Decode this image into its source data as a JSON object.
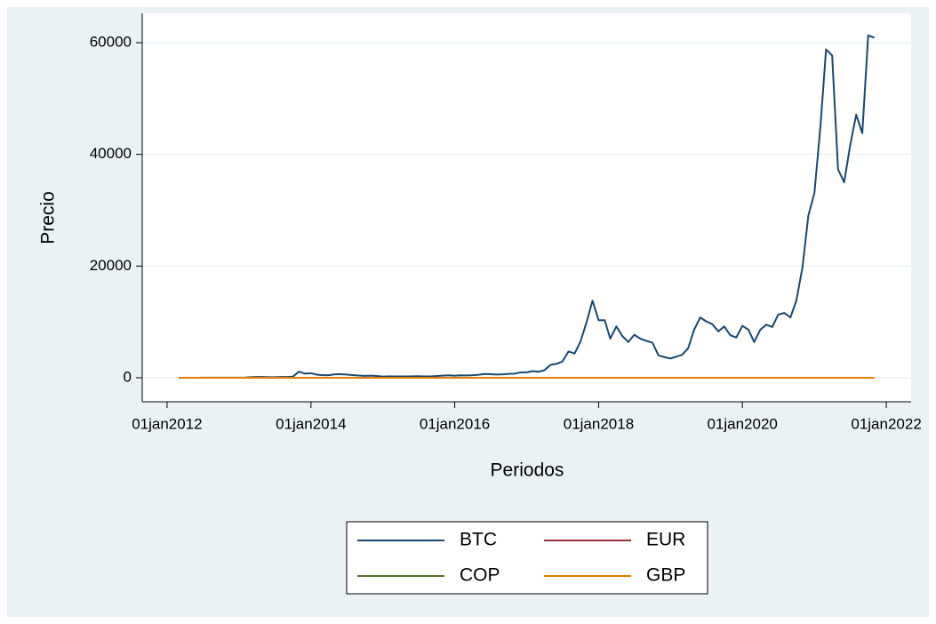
{
  "chart_data": {
    "type": "line",
    "xlabel": "Periodos",
    "ylabel": "Precio",
    "x": [
      "2012-03-01",
      "2012-04-01",
      "2012-05-01",
      "2012-06-01",
      "2012-07-01",
      "2012-08-01",
      "2012-09-01",
      "2012-10-01",
      "2012-11-01",
      "2012-12-01",
      "2013-01-01",
      "2013-02-01",
      "2013-03-01",
      "2013-04-01",
      "2013-05-01",
      "2013-06-01",
      "2013-07-01",
      "2013-08-01",
      "2013-09-01",
      "2013-10-01",
      "2013-11-01",
      "2013-12-01",
      "2014-01-01",
      "2014-02-01",
      "2014-03-01",
      "2014-04-01",
      "2014-05-01",
      "2014-06-01",
      "2014-07-01",
      "2014-08-01",
      "2014-09-01",
      "2014-10-01",
      "2014-11-01",
      "2014-12-01",
      "2015-01-01",
      "2015-02-01",
      "2015-03-01",
      "2015-04-01",
      "2015-05-01",
      "2015-06-01",
      "2015-07-01",
      "2015-08-01",
      "2015-09-01",
      "2015-10-01",
      "2015-11-01",
      "2015-12-01",
      "2016-01-01",
      "2016-02-01",
      "2016-03-01",
      "2016-04-01",
      "2016-05-01",
      "2016-06-01",
      "2016-07-01",
      "2016-08-01",
      "2016-09-01",
      "2016-10-01",
      "2016-11-01",
      "2016-12-01",
      "2017-01-01",
      "2017-02-01",
      "2017-03-01",
      "2017-04-01",
      "2017-05-01",
      "2017-06-01",
      "2017-07-01",
      "2017-08-01",
      "2017-09-01",
      "2017-10-01",
      "2017-11-01",
      "2017-12-01",
      "2018-01-01",
      "2018-02-01",
      "2018-03-01",
      "2018-04-01",
      "2018-05-01",
      "2018-06-01",
      "2018-07-01",
      "2018-08-01",
      "2018-09-01",
      "2018-10-01",
      "2018-11-01",
      "2018-12-01",
      "2019-01-01",
      "2019-02-01",
      "2019-03-01",
      "2019-04-01",
      "2019-05-01",
      "2019-06-01",
      "2019-07-01",
      "2019-08-01",
      "2019-09-01",
      "2019-10-01",
      "2019-11-01",
      "2019-12-01",
      "2020-01-01",
      "2020-02-01",
      "2020-03-01",
      "2020-04-01",
      "2020-05-01",
      "2020-06-01",
      "2020-07-01",
      "2020-08-01",
      "2020-09-01",
      "2020-10-01",
      "2020-11-01",
      "2020-12-01",
      "2021-01-01",
      "2021-02-01",
      "2021-03-01",
      "2021-04-01",
      "2021-05-01",
      "2021-06-01",
      "2021-07-01",
      "2021-08-01",
      "2021-09-01",
      "2021-10-01",
      "2021-11-01"
    ],
    "series": [
      {
        "name": "BTC",
        "color": "#1a476f",
        "values": [
          5,
          5,
          5,
          6,
          8,
          10,
          12,
          11,
          12,
          13,
          20,
          33,
          93,
          140,
          129,
          97,
          106,
          135,
          133,
          200,
          1100,
          750,
          800,
          550,
          450,
          450,
          620,
          640,
          580,
          480,
          390,
          340,
          380,
          320,
          220,
          250,
          245,
          235,
          230,
          265,
          285,
          230,
          236,
          315,
          380,
          430,
          370,
          435,
          415,
          450,
          530,
          670,
          625,
          575,
          610,
          700,
          740,
          960,
          970,
          1190,
          1080,
          1350,
          2300,
          2500,
          2900,
          4700,
          4350,
          6500,
          10000,
          13800,
          10300,
          10300,
          7000,
          9200,
          7500,
          6400,
          7700,
          7000,
          6600,
          6300,
          4000,
          3700,
          3450,
          3800,
          4100,
          5300,
          8600,
          10800,
          10100,
          9600,
          8300,
          9200,
          7600,
          7200,
          9300,
          8600,
          6400,
          8600,
          9500,
          9100,
          11300,
          11600,
          10800,
          13800,
          19700,
          29000,
          33100,
          45200,
          58800,
          57700,
          37300,
          35000,
          41500,
          47100,
          43800,
          61300,
          60900
        ]
      },
      {
        "name": "EUR",
        "color": "#90353b",
        "values": [
          1,
          1,
          1,
          1,
          1,
          1,
          1,
          1,
          1,
          1,
          1,
          1,
          1,
          1,
          1,
          1,
          1,
          1,
          1,
          1,
          1,
          1,
          1,
          1,
          1,
          1,
          1,
          1,
          1,
          1,
          1,
          1,
          1,
          1,
          1,
          1,
          1,
          1,
          1,
          1,
          1,
          1,
          1,
          1,
          1,
          1,
          1,
          1,
          1,
          1,
          1,
          1,
          1,
          1,
          1,
          1,
          1,
          1,
          1,
          1,
          1,
          1,
          1,
          1,
          1,
          1,
          1,
          1,
          1,
          1,
          1,
          1,
          1,
          1,
          1,
          1,
          1,
          1,
          1,
          1,
          1,
          1,
          1,
          1,
          1,
          1,
          1,
          1,
          1,
          1,
          1,
          1,
          1,
          1,
          1,
          1,
          1,
          1,
          1,
          1,
          1,
          1,
          1,
          1,
          1,
          1,
          1,
          1,
          1,
          1,
          1,
          1,
          1,
          1,
          1,
          1,
          1
        ]
      },
      {
        "name": "COP",
        "color": "#55752f",
        "values": [
          0,
          0,
          0,
          0,
          0,
          0,
          0,
          0,
          0,
          0,
          0,
          0,
          0,
          0,
          0,
          0,
          0,
          0,
          0,
          0,
          0,
          0,
          0,
          0,
          0,
          0,
          0,
          0,
          0,
          0,
          0,
          0,
          0,
          0,
          0,
          0,
          0,
          0,
          0,
          0,
          0,
          0,
          0,
          0,
          0,
          0,
          0,
          0,
          0,
          0,
          0,
          0,
          0,
          0,
          0,
          0,
          0,
          0,
          0,
          0,
          0,
          0,
          0,
          0,
          0,
          0,
          0,
          0,
          0,
          0,
          0,
          0,
          0,
          0,
          0,
          0,
          0,
          0,
          0,
          0,
          0,
          0,
          0,
          0,
          0,
          0,
          0,
          0,
          0,
          0,
          0,
          0,
          0,
          0,
          0,
          0,
          0,
          0,
          0,
          0,
          0,
          0,
          0,
          0,
          0,
          0,
          0,
          0,
          0,
          0,
          0,
          0,
          0,
          0,
          0,
          0,
          0
        ]
      },
      {
        "name": "GBP",
        "color": "#e37e00",
        "values": [
          1,
          1,
          1,
          1,
          1,
          1,
          1,
          1,
          1,
          1,
          1,
          1,
          1,
          1,
          1,
          1,
          1,
          1,
          1,
          1,
          1,
          1,
          1,
          1,
          1,
          1,
          1,
          1,
          1,
          1,
          1,
          1,
          1,
          1,
          1,
          1,
          1,
          1,
          1,
          1,
          1,
          1,
          1,
          1,
          1,
          1,
          1,
          1,
          1,
          1,
          1,
          1,
          1,
          1,
          1,
          1,
          1,
          1,
          1,
          1,
          1,
          1,
          1,
          1,
          1,
          1,
          1,
          1,
          1,
          1,
          1,
          1,
          1,
          1,
          1,
          1,
          1,
          1,
          1,
          1,
          1,
          1,
          1,
          1,
          1,
          1,
          1,
          1,
          1,
          1,
          1,
          1,
          1,
          1,
          1,
          1,
          1,
          1,
          1,
          1,
          1,
          1,
          1,
          1,
          1,
          1,
          1,
          1,
          1,
          1,
          1,
          1,
          1,
          1,
          1,
          1,
          1
        ]
      }
    ],
    "xlim": [
      "2011-08-28",
      "2022-05-07"
    ],
    "xticks": [
      {
        "value": "2012-01-01",
        "label": "01jan2012"
      },
      {
        "value": "2014-01-01",
        "label": "01jan2014"
      },
      {
        "value": "2016-01-01",
        "label": "01jan2016"
      },
      {
        "value": "2018-01-01",
        "label": "01jan2018"
      },
      {
        "value": "2020-01-01",
        "label": "01jan2020"
      },
      {
        "value": "2022-01-01",
        "label": "01jan2022"
      }
    ],
    "ylim": [
      -4300,
      65250
    ],
    "yticks": [
      0,
      20000,
      40000,
      60000
    ],
    "grid": true,
    "legend": "bottom"
  }
}
